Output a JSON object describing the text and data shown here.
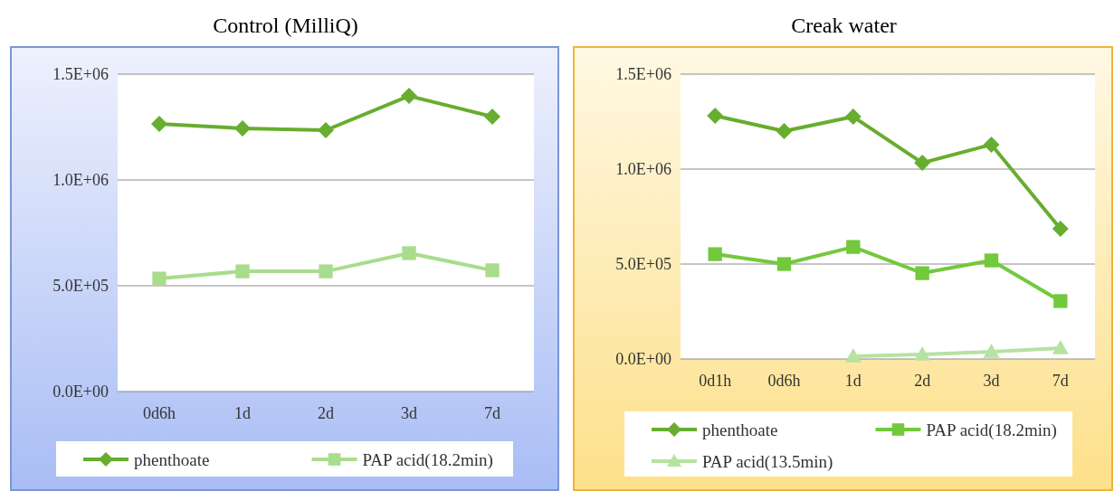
{
  "chart_data": [
    {
      "type": "line",
      "title": "Control (MilliQ)",
      "categories": [
        "0d6h",
        "1d",
        "2d",
        "3d",
        "7d"
      ],
      "series": [
        {
          "name": "phenthoate",
          "color": "#67ad2f",
          "marker": "diamond",
          "values": [
            1265000,
            1244000,
            1235000,
            1397000,
            1299000
          ]
        },
        {
          "name": "PAP acid(18.2min)",
          "color": "#a9dc8c",
          "marker": "square",
          "values": [
            534000,
            568000,
            568000,
            654000,
            573000
          ]
        }
      ],
      "ylim": [
        0,
        1500000
      ],
      "yticks": [
        {
          "value": 0,
          "label": "0.0E+00"
        },
        {
          "value": 500000,
          "label": "5.0E+05"
        },
        {
          "value": 1000000,
          "label": "1.0E+06"
        },
        {
          "value": 1500000,
          "label": "1.5E+06"
        }
      ],
      "grid": "y",
      "legend": "bottom"
    },
    {
      "type": "line",
      "title": "Creak water",
      "categories": [
        "0d1h",
        "0d6h",
        "1d",
        "2d",
        "3d",
        "7d"
      ],
      "series": [
        {
          "name": "phenthoate",
          "color": "#67ad2f",
          "marker": "diamond",
          "values": [
            1281000,
            1200000,
            1276000,
            1033000,
            1129000,
            686000
          ]
        },
        {
          "name": "PAP acid(18.2min)",
          "color": "#72c93c",
          "marker": "square",
          "values": [
            552000,
            500000,
            590000,
            452000,
            519000,
            305000
          ]
        },
        {
          "name": "PAP acid(13.5min)",
          "color": "#b6e2a2",
          "marker": "triangle",
          "values": [
            null,
            null,
            14000,
            24000,
            38000,
            57000
          ]
        }
      ],
      "ylim": [
        0,
        1500000
      ],
      "yticks": [
        {
          "value": 0,
          "label": "0.0E+00"
        },
        {
          "value": 500000,
          "label": "5.0E+05"
        },
        {
          "value": 1000000,
          "label": "1.0E+06"
        },
        {
          "value": 1500000,
          "label": "1.5E+06"
        }
      ],
      "grid": "y",
      "legend": "bottom"
    }
  ]
}
